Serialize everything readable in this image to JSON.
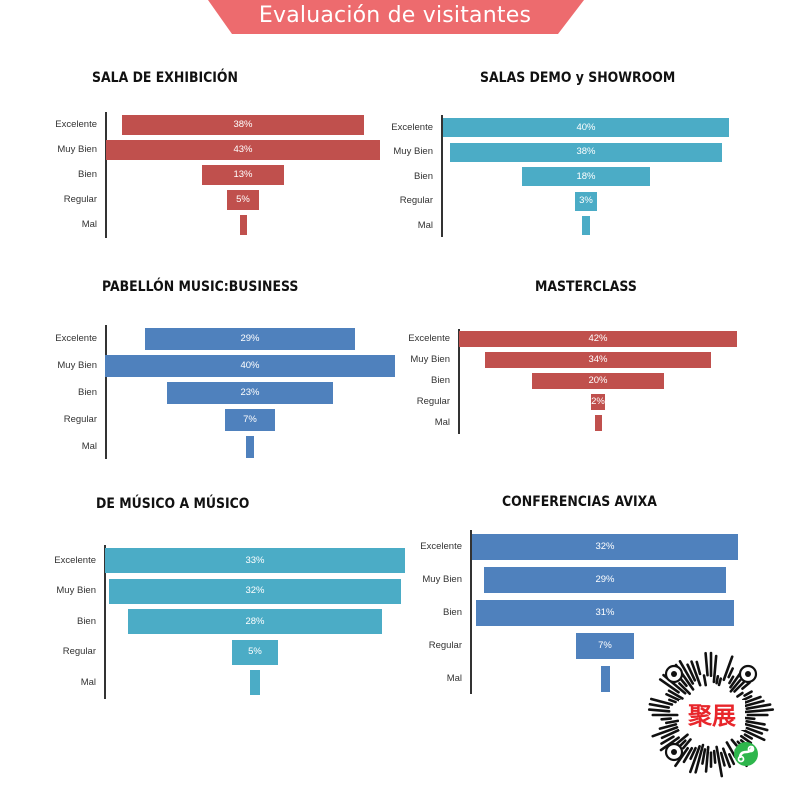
{
  "header": {
    "title": "Evaluación de visitantes",
    "banner_color": "#ED6B6E"
  },
  "chart_data": [
    {
      "type": "bar",
      "variant": "funnel",
      "title": "SALA DE EXHIBICIÓN",
      "categories": [
        "Excelente",
        "Muy Bien",
        "Bien",
        "Regular",
        "Mal"
      ],
      "values": [
        38,
        43,
        13,
        5,
        1
      ],
      "labels": [
        "38%",
        "43%",
        "13%",
        "5%",
        ""
      ],
      "color": "#C0504D",
      "xlabel": "",
      "ylabel": ""
    },
    {
      "type": "bar",
      "variant": "funnel",
      "title": "SALAS DEMO y SHOWROOM",
      "categories": [
        "Excelente",
        "Muy Bien",
        "Bien",
        "Regular",
        "Mal"
      ],
      "values": [
        40,
        38,
        18,
        3,
        1
      ],
      "labels": [
        "40%",
        "38%",
        "18%",
        "3%",
        ""
      ],
      "color": "#4BACC6",
      "xlabel": "",
      "ylabel": ""
    },
    {
      "type": "bar",
      "variant": "funnel",
      "title": "PABELLÓN MUSIC:BUSINESS",
      "categories": [
        "Excelente",
        "Muy Bien",
        "Bien",
        "Regular",
        "Mal"
      ],
      "values": [
        29,
        40,
        23,
        7,
        1.5
      ],
      "labels": [
        "29%",
        "40%",
        "23%",
        "7%",
        ""
      ],
      "color": "#4F81BD",
      "xlabel": "",
      "ylabel": ""
    },
    {
      "type": "bar",
      "variant": "funnel",
      "title": "MASTERCLASS",
      "categories": [
        "Excelente",
        "Muy Bien",
        "Bien",
        "Regular",
        "Mal"
      ],
      "values": [
        42,
        34,
        20,
        2,
        1
      ],
      "labels": [
        "42%",
        "34%",
        "20%",
        "2%",
        ""
      ],
      "color": "#C0504D",
      "xlabel": "",
      "ylabel": ""
    },
    {
      "type": "bar",
      "variant": "funnel",
      "title": "DE MÚSICO A MÚSICO",
      "categories": [
        "Excelente",
        "Muy Bien",
        "Bien",
        "Regular",
        "Mal"
      ],
      "values": [
        33,
        32,
        28,
        5,
        1
      ],
      "labels": [
        "33%",
        "32%",
        "28%",
        "5%",
        ""
      ],
      "color": "#4BACC6",
      "xlabel": "",
      "ylabel": ""
    },
    {
      "type": "bar",
      "variant": "funnel",
      "title": "CONFERENCIAS  AVIXA",
      "categories": [
        "Excelente",
        "Muy Bien",
        "Bien",
        "Regular",
        "Mal"
      ],
      "values": [
        32,
        29,
        31,
        7,
        1
      ],
      "labels": [
        "32%",
        "29%",
        "31%",
        "7%",
        ""
      ],
      "color": "#4F81BD",
      "xlabel": "",
      "ylabel": ""
    }
  ],
  "qr_code": {
    "center_text": "聚展",
    "center_color": "#E8262B",
    "badge_color": "#2EB64C"
  }
}
